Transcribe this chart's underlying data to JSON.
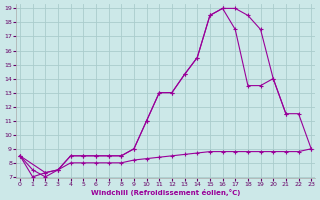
{
  "bg_color": "#cce8e8",
  "grid_color": "#aacccc",
  "line_color": "#990099",
  "xlabel": "Windchill (Refroidissement éolien,°C)",
  "xlim": [
    0,
    23
  ],
  "ylim": [
    7,
    19
  ],
  "xticks": [
    0,
    1,
    2,
    3,
    4,
    5,
    6,
    7,
    8,
    9,
    10,
    11,
    12,
    13,
    14,
    15,
    16,
    17,
    18,
    19,
    20,
    21,
    22,
    23
  ],
  "yticks": [
    7,
    8,
    9,
    10,
    11,
    12,
    13,
    14,
    15,
    16,
    17,
    18,
    19
  ],
  "s1_x": [
    0,
    1,
    2,
    3,
    4,
    5,
    6,
    7,
    8,
    9,
    10,
    11,
    12,
    13,
    14,
    15,
    16,
    17,
    18,
    19,
    20,
    21
  ],
  "s1_y": [
    8.5,
    7.0,
    7.3,
    7.5,
    8.5,
    8.5,
    8.5,
    8.5,
    8.5,
    9.0,
    11.0,
    13.0,
    13.0,
    14.3,
    15.5,
    18.5,
    19.0,
    19.0,
    18.5,
    17.5,
    14.0,
    11.5
  ],
  "s2_x": [
    0,
    1,
    2,
    3,
    4,
    5,
    6,
    7,
    8,
    9,
    10,
    11,
    12,
    13,
    14,
    15,
    16,
    17,
    18,
    19,
    20,
    21,
    22,
    23
  ],
  "s2_y": [
    8.5,
    7.5,
    7.0,
    7.5,
    8.0,
    8.0,
    8.0,
    8.0,
    8.0,
    8.2,
    8.3,
    8.4,
    8.5,
    8.6,
    8.7,
    8.8,
    8.8,
    8.8,
    8.8,
    8.8,
    8.8,
    8.8,
    8.8,
    9.0
  ],
  "s3_x": [
    0,
    2,
    3,
    4,
    5,
    6,
    7,
    8,
    9,
    10,
    11,
    12,
    13,
    14,
    15,
    16,
    17,
    18,
    19,
    20,
    21,
    22,
    23
  ],
  "s3_y": [
    8.5,
    7.3,
    7.5,
    8.5,
    8.5,
    8.5,
    8.5,
    8.5,
    9.0,
    11.0,
    13.0,
    13.0,
    14.3,
    15.5,
    18.5,
    19.0,
    17.5,
    13.5,
    13.5,
    14.0,
    11.5,
    11.5,
    9.0
  ]
}
